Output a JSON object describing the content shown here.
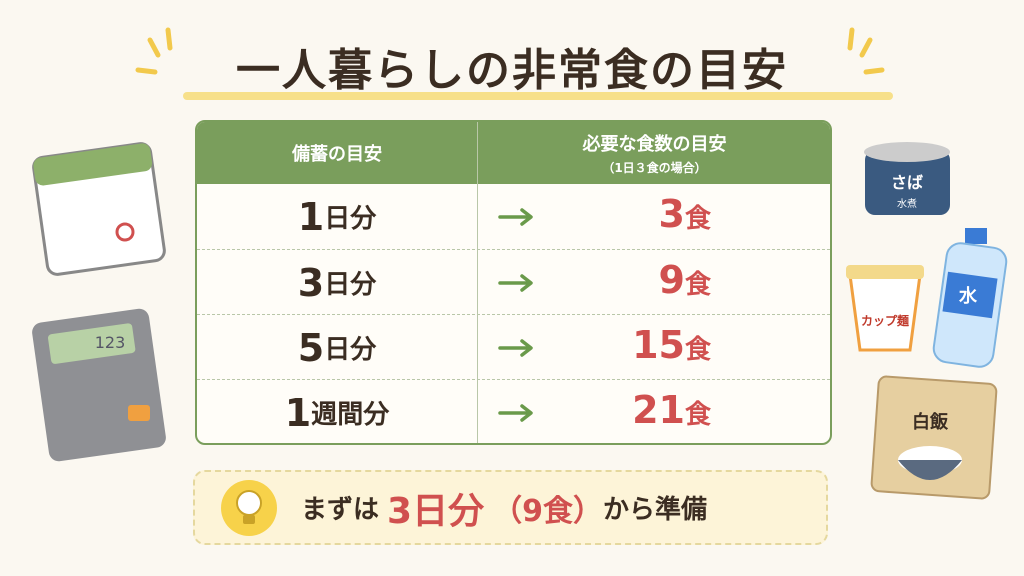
{
  "title": "一人暮らしの非常食の目安",
  "table": {
    "header": [
      "備蓄の目安",
      "必要な食数の目安"
    ],
    "header_note": "（1日３食の場合）",
    "rows": [
      {
        "count": "1",
        "unit": "日分",
        "meals": "3",
        "meal_unit": "食"
      },
      {
        "count": "3",
        "unit": "日分",
        "meals": "9",
        "meal_unit": "食"
      },
      {
        "count": "5",
        "unit": "日分",
        "meals": "15",
        "meal_unit": "食"
      },
      {
        "count": "1",
        "unit": "週間分",
        "meals": "21",
        "meal_unit": "食"
      }
    ]
  },
  "tip": {
    "before": "まずは",
    "highlight": "3日分",
    "paren": "（9食）",
    "after": "から準備"
  },
  "illustrations": {
    "calculator": "123",
    "can": "さば",
    "can_sub": "水煮",
    "water": "水",
    "noodle": "カップ麺",
    "rice": "白飯"
  }
}
